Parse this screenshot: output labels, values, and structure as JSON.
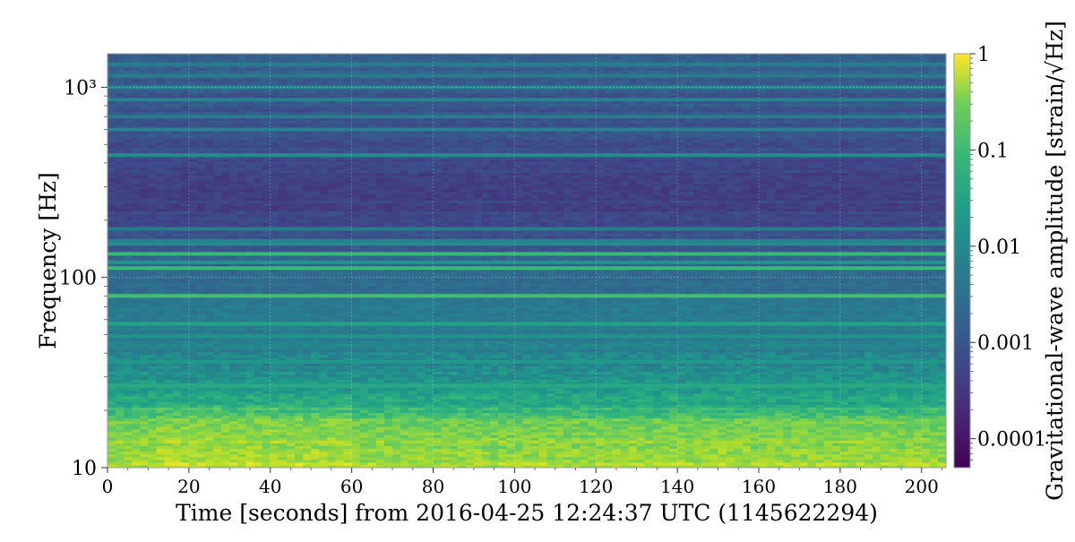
{
  "chart_data": {
    "type": "heatmap",
    "title": "",
    "xlabel": "Time [seconds] from 2016-04-25 12:24:37 UTC (1145622294)",
    "ylabel": "Frequency [Hz]",
    "colorbar_label": "Gravitational-wave amplitude [strain/√Hz]",
    "x_range": [
      0,
      206
    ],
    "x_ticks": [
      0,
      20,
      40,
      60,
      80,
      100,
      120,
      140,
      160,
      180,
      200
    ],
    "x_tick_labels": [
      "0",
      "20",
      "40",
      "60",
      "80",
      "100",
      "120",
      "140",
      "160",
      "180",
      "200"
    ],
    "y_scale": "log",
    "y_range": [
      10,
      1500
    ],
    "y_ticks": [
      10,
      100,
      1000
    ],
    "y_tick_labels": [
      "10",
      "100",
      "10³"
    ],
    "color_scale": "log",
    "color_range": [
      5e-05,
      1
    ],
    "colorbar_ticks": [
      0.0001,
      0.001,
      0.01,
      0.1,
      1
    ],
    "colorbar_tick_labels": [
      "0.0001",
      "0.001",
      "0.01",
      "0.1",
      "1"
    ],
    "colormap": "viridis",
    "grid": true,
    "time_bin_seconds": 2,
    "spectral_profile_hz": [
      {
        "f": 10,
        "amp": 0.3
      },
      {
        "f": 12,
        "amp": 0.2
      },
      {
        "f": 15,
        "amp": 0.15
      },
      {
        "f": 18,
        "amp": 0.08
      },
      {
        "f": 22,
        "amp": 0.02
      },
      {
        "f": 30,
        "amp": 0.008
      },
      {
        "f": 40,
        "amp": 0.004
      },
      {
        "f": 60,
        "amp": 0.003
      },
      {
        "f": 100,
        "amp": 0.0015
      },
      {
        "f": 150,
        "amp": 0.0008
      },
      {
        "f": 200,
        "amp": 0.0004
      },
      {
        "f": 300,
        "amp": 0.0003
      },
      {
        "f": 500,
        "amp": 0.0006
      },
      {
        "f": 700,
        "amp": 0.0007
      },
      {
        "f": 1000,
        "amp": 0.0008
      },
      {
        "f": 1500,
        "amp": 0.0012
      }
    ],
    "spectral_lines_hz": [
      {
        "f": 80,
        "amp": 0.05
      },
      {
        "f": 112,
        "amp": 0.04
      },
      {
        "f": 133,
        "amp": 0.04
      },
      {
        "f": 120,
        "amp": 0.008
      },
      {
        "f": 57,
        "amp": 0.015
      },
      {
        "f": 27,
        "amp": 0.02
      },
      {
        "f": 36,
        "amp": 0.01
      },
      {
        "f": 49,
        "amp": 0.008
      },
      {
        "f": 150,
        "amp": 0.006
      },
      {
        "f": 156,
        "amp": 0.004
      },
      {
        "f": 180,
        "amp": 0.003
      },
      {
        "f": 440,
        "amp": 0.006
      },
      {
        "f": 600,
        "amp": 0.004
      },
      {
        "f": 700,
        "amp": 0.003
      },
      {
        "f": 860,
        "amp": 0.004
      },
      {
        "f": 1000,
        "amp": 0.005
      },
      {
        "f": 1150,
        "amp": 0.003
      },
      {
        "f": 1320,
        "amp": 0.003
      }
    ]
  }
}
